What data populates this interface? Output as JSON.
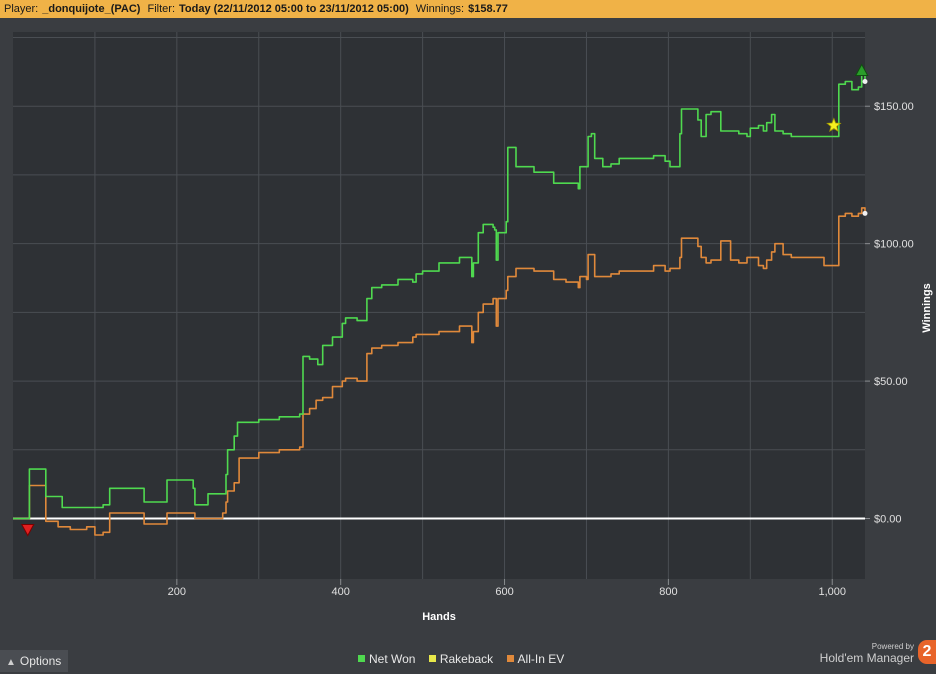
{
  "header": {
    "player_label": "Player:",
    "player_value": "_donquijote_(PAC)",
    "filter_label": "Filter:",
    "filter_value": "Today (22/11/2012 05:00 to 23/11/2012 05:00)",
    "winnings_label": "Winnings:",
    "winnings_value": "$158.77"
  },
  "chart_data": {
    "type": "line",
    "xlabel": "Hands",
    "ylabel": "Winnings",
    "xlim": [
      0,
      1040
    ],
    "ylim": [
      -22,
      177
    ],
    "x_ticks": [
      200,
      400,
      600,
      800,
      1000
    ],
    "x_tick_labels": [
      "200",
      "400",
      "600",
      "800",
      "1,000"
    ],
    "y_ticks": [
      0,
      50,
      100,
      150
    ],
    "y_tick_labels": [
      "$0.00",
      "$50.00",
      "$100.00",
      "$150.00"
    ],
    "grid": true,
    "legend_position": "bottom",
    "series": [
      {
        "name": "Net Won",
        "color": "#4fd94f",
        "points": [
          [
            0,
            0
          ],
          [
            18,
            0
          ],
          [
            20,
            18
          ],
          [
            38,
            18
          ],
          [
            40,
            8
          ],
          [
            60,
            4
          ],
          [
            90,
            4
          ],
          [
            110,
            5
          ],
          [
            118,
            11
          ],
          [
            160,
            6
          ],
          [
            185,
            6
          ],
          [
            188,
            14
          ],
          [
            210,
            14
          ],
          [
            220,
            11
          ],
          [
            222,
            5
          ],
          [
            238,
            9
          ],
          [
            260,
            16
          ],
          [
            262,
            25
          ],
          [
            270,
            30
          ],
          [
            274,
            35
          ],
          [
            300,
            36
          ],
          [
            325,
            37
          ],
          [
            350,
            38
          ],
          [
            354,
            59
          ],
          [
            362,
            58
          ],
          [
            372,
            56
          ],
          [
            378,
            63
          ],
          [
            390,
            66
          ],
          [
            402,
            71
          ],
          [
            406,
            73
          ],
          [
            420,
            72
          ],
          [
            432,
            80
          ],
          [
            438,
            84
          ],
          [
            450,
            85
          ],
          [
            470,
            87
          ],
          [
            488,
            86
          ],
          [
            492,
            89
          ],
          [
            500,
            90
          ],
          [
            520,
            93
          ],
          [
            545,
            95
          ],
          [
            560,
            88
          ],
          [
            562,
            93
          ],
          [
            568,
            104
          ],
          [
            574,
            107
          ],
          [
            586,
            106
          ],
          [
            588,
            105
          ],
          [
            590,
            94
          ],
          [
            592,
            104
          ],
          [
            596,
            104
          ],
          [
            602,
            108
          ],
          [
            604,
            135
          ],
          [
            614,
            128
          ],
          [
            636,
            126
          ],
          [
            660,
            122
          ],
          [
            675,
            122
          ],
          [
            690,
            120
          ],
          [
            692,
            128
          ],
          [
            700,
            128
          ],
          [
            702,
            139
          ],
          [
            706,
            140
          ],
          [
            710,
            131
          ],
          [
            720,
            128
          ],
          [
            730,
            129
          ],
          [
            740,
            131
          ],
          [
            760,
            131
          ],
          [
            782,
            132
          ],
          [
            796,
            130
          ],
          [
            802,
            128
          ],
          [
            814,
            140
          ],
          [
            816,
            149
          ],
          [
            836,
            145
          ],
          [
            840,
            139
          ],
          [
            846,
            147
          ],
          [
            852,
            148
          ],
          [
            864,
            141
          ],
          [
            876,
            141
          ],
          [
            886,
            140
          ],
          [
            896,
            139
          ],
          [
            900,
            142
          ],
          [
            910,
            143
          ],
          [
            916,
            141
          ],
          [
            920,
            144
          ],
          [
            926,
            147
          ],
          [
            930,
            141
          ],
          [
            940,
            140
          ],
          [
            950,
            139
          ],
          [
            990,
            139
          ],
          [
            1006,
            139
          ],
          [
            1008,
            158
          ],
          [
            1016,
            159
          ],
          [
            1024,
            156
          ],
          [
            1032,
            157
          ],
          [
            1036,
            162
          ],
          [
            1040,
            159
          ]
        ]
      },
      {
        "name": "Rakeback",
        "color": "#e8e84a",
        "points": []
      },
      {
        "name": "All-In EV",
        "color": "#e0893b",
        "points": [
          [
            0,
            0
          ],
          [
            18,
            0
          ],
          [
            20,
            12
          ],
          [
            38,
            12
          ],
          [
            40,
            -1
          ],
          [
            55,
            -3
          ],
          [
            70,
            -4
          ],
          [
            90,
            -3
          ],
          [
            100,
            -6
          ],
          [
            110,
            -5
          ],
          [
            118,
            2
          ],
          [
            145,
            2
          ],
          [
            160,
            -2
          ],
          [
            185,
            -2
          ],
          [
            188,
            2
          ],
          [
            210,
            2
          ],
          [
            222,
            0
          ],
          [
            238,
            0
          ],
          [
            254,
            0
          ],
          [
            256,
            2
          ],
          [
            260,
            6
          ],
          [
            262,
            10
          ],
          [
            270,
            13
          ],
          [
            276,
            22
          ],
          [
            300,
            24
          ],
          [
            325,
            25
          ],
          [
            350,
            26
          ],
          [
            354,
            38
          ],
          [
            362,
            40
          ],
          [
            370,
            43
          ],
          [
            378,
            44
          ],
          [
            390,
            48
          ],
          [
            402,
            50
          ],
          [
            406,
            51
          ],
          [
            420,
            50
          ],
          [
            432,
            60
          ],
          [
            438,
            62
          ],
          [
            450,
            63
          ],
          [
            470,
            64
          ],
          [
            488,
            66
          ],
          [
            492,
            67
          ],
          [
            500,
            67
          ],
          [
            520,
            68
          ],
          [
            545,
            70
          ],
          [
            560,
            64
          ],
          [
            562,
            68
          ],
          [
            568,
            75
          ],
          [
            574,
            78
          ],
          [
            586,
            80
          ],
          [
            588,
            80
          ],
          [
            590,
            70
          ],
          [
            592,
            80
          ],
          [
            596,
            80
          ],
          [
            602,
            83
          ],
          [
            604,
            88
          ],
          [
            614,
            91
          ],
          [
            636,
            90
          ],
          [
            660,
            87
          ],
          [
            675,
            86
          ],
          [
            690,
            84
          ],
          [
            692,
            88
          ],
          [
            700,
            87
          ],
          [
            702,
            96
          ],
          [
            706,
            96
          ],
          [
            710,
            88
          ],
          [
            720,
            88
          ],
          [
            730,
            89
          ],
          [
            740,
            90
          ],
          [
            760,
            90
          ],
          [
            782,
            92
          ],
          [
            796,
            90
          ],
          [
            802,
            91
          ],
          [
            814,
            95
          ],
          [
            816,
            102
          ],
          [
            836,
            99
          ],
          [
            840,
            95
          ],
          [
            846,
            93
          ],
          [
            852,
            94
          ],
          [
            864,
            101
          ],
          [
            876,
            94
          ],
          [
            886,
            93
          ],
          [
            896,
            95
          ],
          [
            900,
            95
          ],
          [
            910,
            92
          ],
          [
            916,
            91
          ],
          [
            920,
            94
          ],
          [
            926,
            97
          ],
          [
            930,
            100
          ],
          [
            940,
            96
          ],
          [
            950,
            95
          ],
          [
            990,
            92
          ],
          [
            1006,
            92
          ],
          [
            1008,
            110
          ],
          [
            1016,
            111
          ],
          [
            1024,
            110
          ],
          [
            1032,
            111
          ],
          [
            1036,
            113
          ],
          [
            1040,
            111
          ]
        ]
      }
    ],
    "markers": [
      {
        "kind": "min",
        "x": 18,
        "y": -4,
        "color": "#e02020"
      },
      {
        "kind": "max",
        "x": 1036,
        "y": 163,
        "color": "#2a9d2a"
      },
      {
        "kind": "star",
        "x": 1002,
        "y": 143,
        "color": "#f5f020"
      }
    ]
  },
  "footer": {
    "options_label": "Options",
    "powered_by": "Powered by",
    "brand_name": "Hold'em Manager",
    "brand_version": "2"
  }
}
